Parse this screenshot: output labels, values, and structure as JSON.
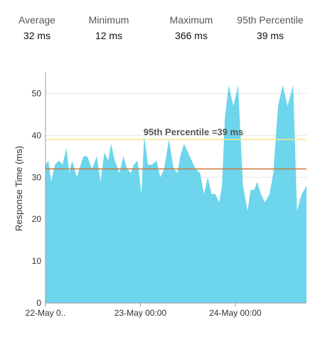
{
  "stats": [
    {
      "label": "Average",
      "value": "32 ms"
    },
    {
      "label": "Minimum",
      "value": "12 ms"
    },
    {
      "label": "Maximum",
      "value": "366 ms"
    },
    {
      "label": "95th Percentile",
      "value": "39 ms"
    }
  ],
  "chart_data": {
    "type": "area",
    "ylabel": "Response Time (ms)",
    "ylim": [
      0,
      55
    ],
    "yticks": [
      0,
      10,
      20,
      30,
      40,
      50
    ],
    "xlim": [
      0,
      2.75
    ],
    "x_unit": "days from 22-May 00:00",
    "xticks": [
      {
        "x": 0,
        "label": "22-May 0.."
      },
      {
        "x": 1,
        "label": "23-May 00:00"
      },
      {
        "x": 2,
        "label": "24-May 00:00"
      }
    ],
    "grid": "horizontal",
    "colors": {
      "area": "#6dd5ec",
      "percentile_line": "#f5e68a",
      "average_line": "#c8783a",
      "grid": "#e6e6e6"
    },
    "reference_lines": [
      {
        "name": "95th Percentile",
        "value": 39,
        "label": "95th Percentile =39 ms"
      },
      {
        "name": "Average",
        "value": 32
      }
    ],
    "series": [
      {
        "x": [
          0,
          0.03,
          0.06,
          0.1,
          0.14,
          0.18,
          0.22,
          0.25,
          0.28,
          0.33,
          0.37,
          0.4,
          0.44,
          0.49,
          0.54,
          0.58,
          0.62,
          0.66,
          0.69,
          0.73,
          0.78,
          0.82,
          0.86,
          0.9,
          0.93,
          0.97,
          1.01,
          1.04,
          1.08,
          1.12,
          1.17,
          1.21,
          1.25,
          1.3,
          1.35,
          1.39,
          1.42,
          1.46,
          1.5,
          1.54,
          1.58,
          1.63,
          1.67,
          1.71,
          1.75,
          1.79,
          1.83,
          1.86,
          1.89,
          1.93,
          1.98,
          2.03,
          2.08,
          2.13,
          2.16,
          2.2,
          2.23,
          2.27,
          2.31,
          2.36,
          2.4,
          2.45,
          2.5,
          2.55,
          2.61,
          2.65,
          2.7,
          2.75
        ],
        "values": [
          33,
          34,
          29,
          33,
          34,
          33,
          37,
          31,
          34,
          30,
          33,
          35,
          35,
          32,
          35,
          29,
          36,
          34,
          38,
          34,
          31,
          35,
          32,
          31,
          33,
          34,
          26,
          40,
          33,
          33,
          34,
          30,
          32,
          39,
          32,
          31,
          35,
          38,
          36,
          34,
          32,
          31,
          26,
          30,
          26,
          26,
          24,
          28,
          44,
          52,
          47,
          52,
          28,
          22,
          27,
          27,
          29,
          26,
          24,
          26,
          31,
          47,
          52,
          47,
          52,
          22,
          26,
          28
        ]
      }
    ]
  }
}
